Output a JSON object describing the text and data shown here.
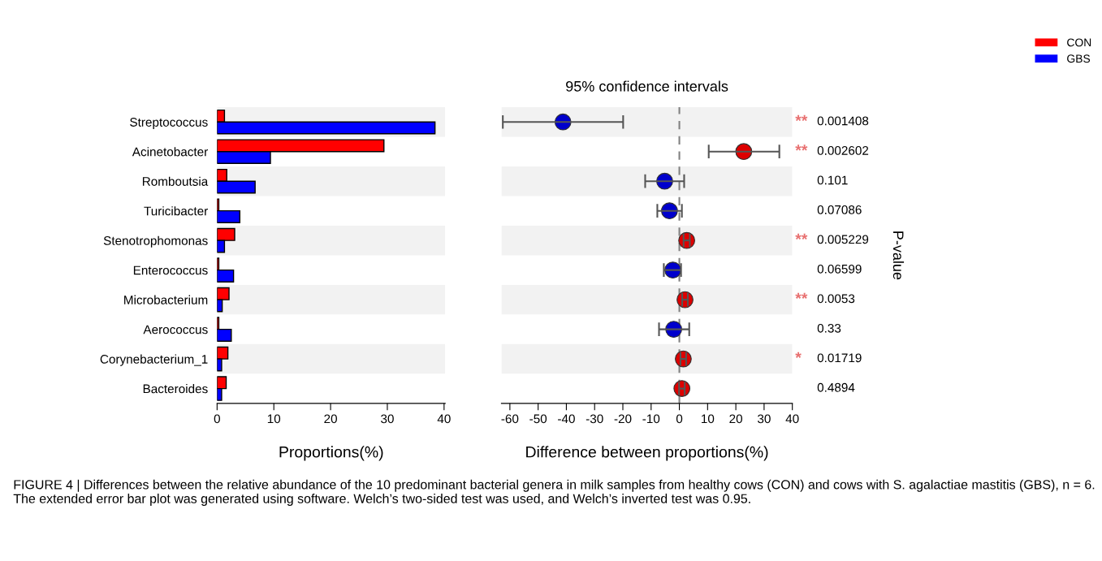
{
  "chart_data": [
    {
      "type": "bar",
      "orientation": "horizontal",
      "categories": [
        "Streptococcus",
        "Acinetobacter",
        "Romboutsia",
        "Turicibacter",
        "Stenotrophomonas",
        "Enterococcus",
        "Microbacterium",
        "Aerococcus",
        "Corynebacterium_1",
        "Bacteroides"
      ],
      "series": [
        {
          "name": "CON",
          "color": "#ff0000",
          "values": [
            1.3,
            29.4,
            1.7,
            0.3,
            3.1,
            0.3,
            2.1,
            0.3,
            1.9,
            1.6
          ]
        },
        {
          "name": "GBS",
          "color": "#0000ff",
          "values": [
            38.4,
            9.4,
            6.7,
            4.0,
            1.3,
            2.9,
            0.9,
            2.5,
            0.8,
            0.8
          ]
        }
      ],
      "xlim": [
        0,
        40.2
      ],
      "xticks": [
        0,
        10,
        20,
        30,
        40
      ],
      "xlabel": "Proportions(%)",
      "legend": "top right",
      "grid": false,
      "annotations": [
        "FIGURE 4 | Differences between the relative abundance of the 10 predominant bacterial genera in milk samples from healthy cows (CON) and cows with S. agalactiae mastitis (GBS), n = 6. The extended error bar plot was generated using software. Welch’s two-sided test was used, and Welch’s inverted test was 0.95."
      ]
    },
    {
      "type": "scatter",
      "title": "95% confidence intervals",
      "xlabel": "Difference between proportions(%)",
      "y2label": "P-value",
      "tick_labels": "x",
      "marker": "circle",
      "grid": false,
      "orientation": "horizontal",
      "categories": [
        null,
        null,
        null,
        null,
        null,
        null,
        null,
        null,
        null,
        null
      ],
      "values": [
        -41.2,
        22.8,
        -5.2,
        -3.5,
        2.6,
        -2.3,
        2.0,
        -2.0,
        1.4,
        0.9
      ],
      "errors": [
        [
          -62.5,
          -19.9
        ],
        [
          10.4,
          35.4
        ],
        [
          -12.1,
          1.7
        ],
        [
          -7.8,
          0.9
        ],
        [
          1.5,
          3.7
        ],
        [
          -5.5,
          0.6
        ],
        [
          1.0,
          3.0
        ],
        [
          -7.2,
          3.5
        ],
        [
          0.4,
          2.4
        ],
        [
          -0.1,
          1.9
        ]
      ],
      "colors": [
        "#0000cc",
        "#dd0000",
        "#0000cc",
        "#0000cc",
        "#dd0000",
        "#0000cc",
        "#dd0000",
        "#0000cc",
        "#dd0000",
        "#dd0000"
      ],
      "xlim": [
        -63,
        40
      ],
      "xticks": [
        -60,
        -50,
        -40,
        -30,
        -20,
        -10,
        0,
        10,
        20,
        30,
        40
      ],
      "ref_lines": [
        {
          "axis": "x",
          "value": 0,
          "line_style": "dashed",
          "color": "#808080"
        }
      ],
      "annotations": [
        "**",
        "0.001408",
        "**",
        "0.002602",
        "0.101",
        "0.07086",
        "**",
        "0.005229",
        "0.06599",
        "**",
        "0.0053",
        "0.33",
        "*",
        "0.01719",
        "0.4894"
      ]
    }
  ]
}
